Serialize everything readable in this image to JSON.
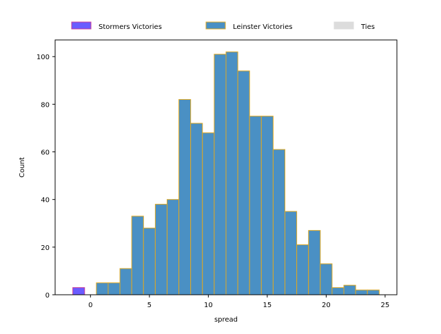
{
  "chart_data": {
    "type": "bar",
    "xlabel": "spread",
    "ylabel": "Count",
    "xlim": [
      -3,
      26
    ],
    "ylim": [
      0,
      107
    ],
    "xticks": [
      0,
      5,
      10,
      15,
      20,
      25
    ],
    "yticks": [
      0,
      20,
      40,
      60,
      80,
      100
    ],
    "grid": false,
    "legend_position": "top-center, above plot, horizontal",
    "series": [
      {
        "name": "Stormers Victories",
        "color": "#6a5cff",
        "edgecolor": "#c8389a",
        "bins": [
          {
            "x0": -1.5,
            "x1": -0.5,
            "count": 3
          }
        ]
      },
      {
        "name": "Leinster Victories",
        "color": "#4a90c4",
        "edgecolor": "#e0a820",
        "bins": [
          {
            "x0": 0.5,
            "x1": 1.5,
            "count": 5
          },
          {
            "x0": 1.5,
            "x1": 2.5,
            "count": 5
          },
          {
            "x0": 2.5,
            "x1": 3.5,
            "count": 11
          },
          {
            "x0": 3.5,
            "x1": 4.5,
            "count": 33
          },
          {
            "x0": 4.5,
            "x1": 5.5,
            "count": 28
          },
          {
            "x0": 5.5,
            "x1": 6.5,
            "count": 38
          },
          {
            "x0": 6.5,
            "x1": 7.5,
            "count": 40
          },
          {
            "x0": 7.5,
            "x1": 8.5,
            "count": 82
          },
          {
            "x0": 8.5,
            "x1": 9.5,
            "count": 72
          },
          {
            "x0": 9.5,
            "x1": 10.5,
            "count": 68
          },
          {
            "x0": 10.5,
            "x1": 11.5,
            "count": 101
          },
          {
            "x0": 11.5,
            "x1": 12.5,
            "count": 102
          },
          {
            "x0": 12.5,
            "x1": 13.5,
            "count": 94
          },
          {
            "x0": 13.5,
            "x1": 14.5,
            "count": 75
          },
          {
            "x0": 14.5,
            "x1": 15.5,
            "count": 75
          },
          {
            "x0": 15.5,
            "x1": 16.5,
            "count": 61
          },
          {
            "x0": 16.5,
            "x1": 17.5,
            "count": 35
          },
          {
            "x0": 17.5,
            "x1": 18.5,
            "count": 21
          },
          {
            "x0": 18.5,
            "x1": 19.5,
            "count": 27
          },
          {
            "x0": 19.5,
            "x1": 20.5,
            "count": 13
          },
          {
            "x0": 20.5,
            "x1": 21.5,
            "count": 3
          },
          {
            "x0": 21.5,
            "x1": 22.5,
            "count": 4
          },
          {
            "x0": 22.5,
            "x1": 23.5,
            "count": 2
          },
          {
            "x0": 23.5,
            "x1": 24.5,
            "count": 2
          }
        ]
      },
      {
        "name": "Ties",
        "color": "#dcdcdc",
        "edgecolor": "#dcdcdc",
        "bins": []
      }
    ]
  }
}
